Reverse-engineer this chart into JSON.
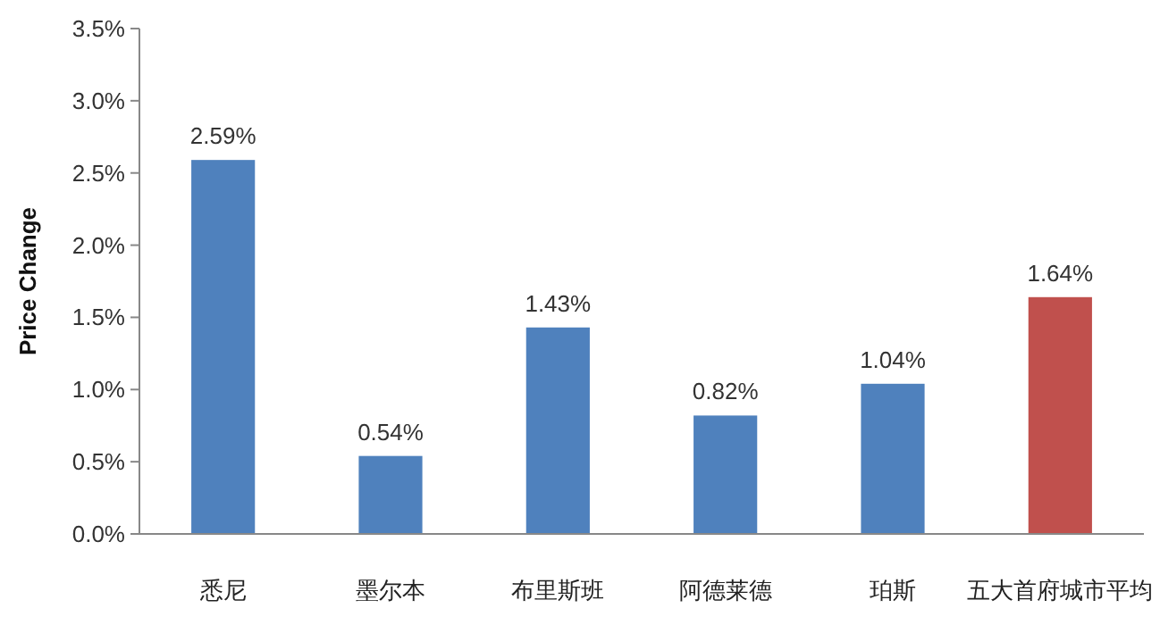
{
  "chart_data": {
    "type": "bar",
    "ylabel": "Price Change",
    "categories": [
      "悉尼",
      "墨尔本",
      "布里斯班",
      "阿德莱德",
      "珀斯",
      "五大首府城市平均"
    ],
    "values": [
      2.59,
      0.54,
      1.43,
      0.82,
      1.04,
      1.64
    ],
    "colors": [
      "#4f81bd",
      "#4f81bd",
      "#4f81bd",
      "#4f81bd",
      "#4f81bd",
      "#c0504d"
    ],
    "value_labels": [
      "2.59%",
      "0.54%",
      "1.43%",
      "0.82%",
      "1.04%",
      "1.64%"
    ],
    "ylim": [
      0,
      3.5
    ],
    "yticks": [
      {
        "value": 0,
        "label": "0.0%"
      },
      {
        "value": 0.5,
        "label": "0.5%"
      },
      {
        "value": 1,
        "label": "1.0%"
      },
      {
        "value": 1.5,
        "label": "1.5%"
      },
      {
        "value": 2,
        "label": "2.0%"
      },
      {
        "value": 2.5,
        "label": "2.5%"
      },
      {
        "value": 3,
        "label": "3.0%"
      },
      {
        "value": 3.5,
        "label": "3.5%"
      }
    ],
    "grid": false
  }
}
